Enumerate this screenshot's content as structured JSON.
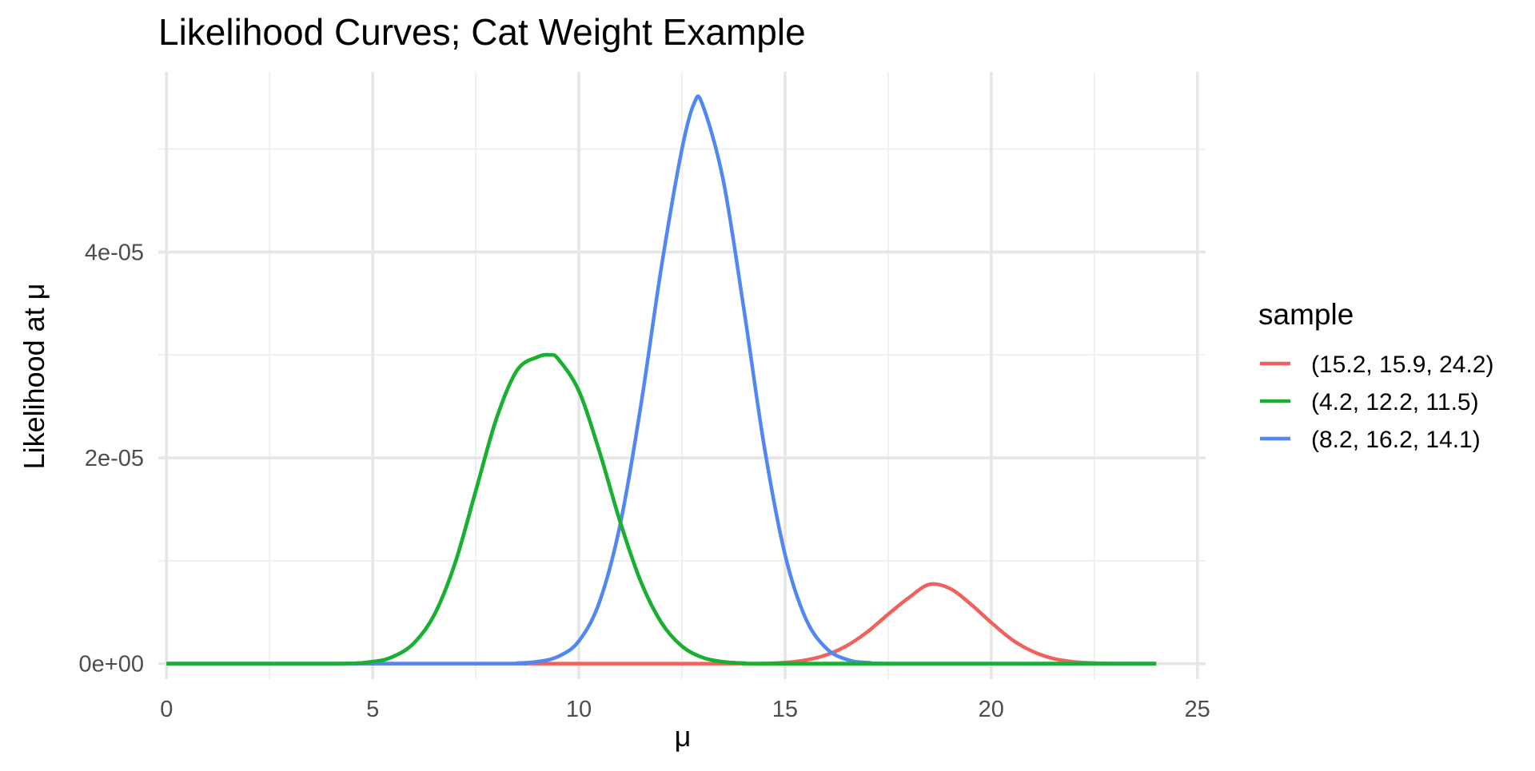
{
  "chart_data": {
    "type": "line",
    "title": "Likelihood Curves; Cat Weight Example",
    "xlabel": "μ",
    "ylabel": "Likelihood at  μ",
    "xlim": [
      -0.2,
      25.2
    ],
    "ylim": [
      -1.5e-06,
      5.75e-05
    ],
    "x_ticks": [
      0,
      5,
      10,
      15,
      20,
      25
    ],
    "x_tick_labels": [
      "0",
      "5",
      "10",
      "15",
      "20",
      "25"
    ],
    "y_ticks": [
      0,
      2e-05,
      4e-05
    ],
    "y_tick_labels": [
      "0e+00",
      "2e-05",
      "4e-05"
    ],
    "grid": true,
    "legend": {
      "title": "sample",
      "position": "right"
    },
    "series": [
      {
        "name": "(15.2, 15.9, 24.2)",
        "color": "#f0615d",
        "x": [
          0,
          10,
          14,
          15,
          15.5,
          16,
          16.5,
          17,
          17.5,
          18,
          18.5,
          19,
          19.5,
          20,
          20.5,
          21,
          21.5,
          22,
          22.5,
          23,
          24
        ],
        "y": [
          0,
          0,
          2e-10,
          1.2e-07,
          3.5e-07,
          8.5e-07,
          1.75e-06,
          3.1e-06,
          4.8e-06,
          6.4e-06,
          7.7e-06,
          7.3e-06,
          5.8e-06,
          4e-06,
          2.35e-06,
          1.2e-06,
          5e-07,
          1.8e-07,
          6e-08,
          1e-08,
          0
        ]
      },
      {
        "name": "(4.2, 12.2, 11.5)",
        "color": "#18b030",
        "x": [
          0,
          4,
          5,
          5.5,
          6,
          6.5,
          7,
          7.5,
          8,
          8.5,
          9,
          9.3,
          9.5,
          10,
          10.5,
          11,
          11.5,
          12,
          12.5,
          13,
          13.5,
          14,
          15,
          24
        ],
        "y": [
          0,
          0,
          2e-07,
          7e-07,
          2e-06,
          4.8e-06,
          9.8e-06,
          1.68e-05,
          2.38e-05,
          2.85e-05,
          2.98e-05,
          3e-05,
          2.96e-05,
          2.65e-05,
          2.06e-05,
          1.38e-05,
          8e-06,
          4e-06,
          1.7e-06,
          6e-07,
          1.8e-07,
          5e-08,
          0,
          0
        ]
      },
      {
        "name": "(8.2, 16.2, 14.1)",
        "color": "#5087f2",
        "x": [
          0,
          8,
          8.5,
          9,
          9.5,
          10,
          10.5,
          11,
          11.5,
          12,
          12.5,
          12.8,
          13,
          13.5,
          14,
          14.5,
          15,
          15.5,
          16,
          16.5,
          17,
          18,
          24
        ],
        "y": [
          0,
          0,
          5e-08,
          2e-07,
          7e-07,
          2.2e-06,
          6e-06,
          1.35e-05,
          2.5e-05,
          3.85e-05,
          5e-05,
          5.45e-05,
          5.43e-05,
          4.7e-05,
          3.45e-05,
          2.1e-05,
          1.06e-05,
          4.4e-06,
          1.5e-06,
          4e-07,
          1e-07,
          0,
          0
        ]
      }
    ]
  }
}
